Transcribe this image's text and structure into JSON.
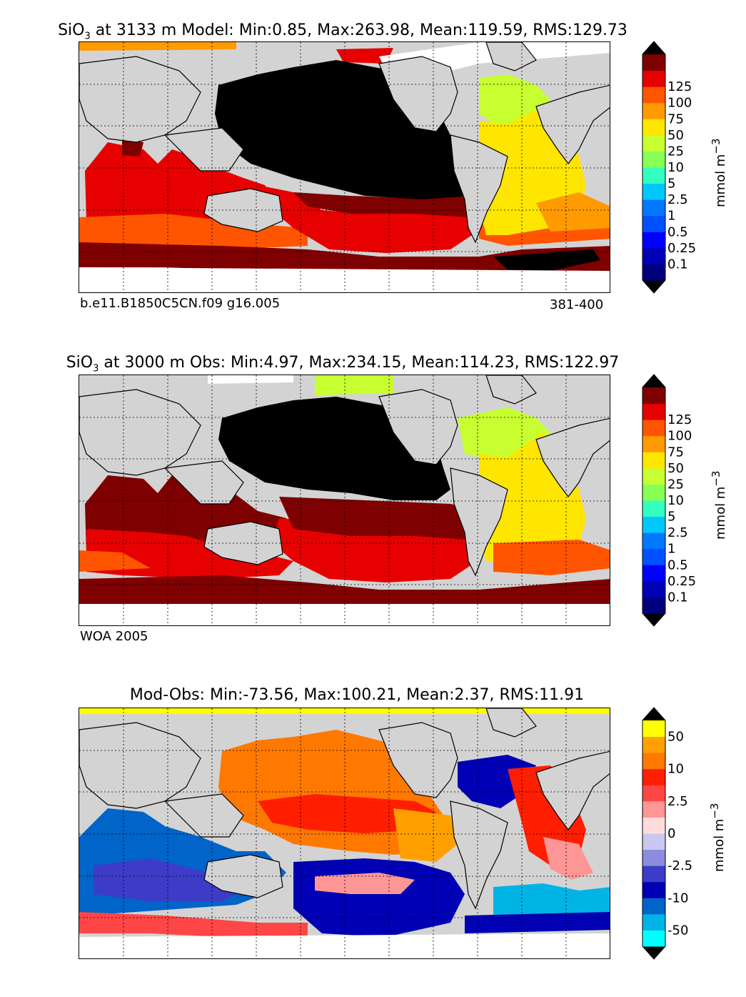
{
  "colors": {
    "land": "#d3d3d3",
    "nodata": "#ffffff",
    "pacific_deep": "#000000",
    "grid": "#000000"
  },
  "panels": [
    {
      "id": "model",
      "title_prefix": "SiO",
      "title_sub": "3",
      "title_suffix": " at 3133 m Model: Min:0.85, Max:263.98, Mean:119.59, RMS:129.73",
      "note_left": "b.e11.B1850C5CN.f09 g16.005",
      "note_right": "381-400",
      "colorbar": {
        "unit": "mmol m",
        "unit_sup": "−3",
        "levels": [
          "0.1",
          "0.25",
          "0.5",
          "1",
          "2.5",
          "5",
          "10",
          "25",
          "50",
          "75",
          "100",
          "125"
        ],
        "colors": [
          "#00007f",
          "#0000b4",
          "#0000ff",
          "#0050ff",
          "#0078ff",
          "#00c8ff",
          "#33ffc0",
          "#88ff55",
          "#c8ff30",
          "#ffe600",
          "#ff9a00",
          "#ff5500",
          "#e60000",
          "#7f0000"
        ],
        "top_arrow": "#000000",
        "bottom_arrow": "#000000"
      }
    },
    {
      "id": "obs",
      "title_prefix": "SiO",
      "title_sub": "3",
      "title_suffix": " at 3000 m Obs: Min:4.97, Max:234.15, Mean:114.23, RMS:122.97",
      "note_left": "WOA 2005",
      "note_right": "",
      "colorbar": {
        "unit": "mmol m",
        "unit_sup": "−3",
        "levels": [
          "0.1",
          "0.25",
          "0.5",
          "1",
          "2.5",
          "5",
          "10",
          "25",
          "50",
          "75",
          "100",
          "125"
        ],
        "colors": [
          "#00007f",
          "#0000b4",
          "#0000ff",
          "#0050ff",
          "#0078ff",
          "#00c8ff",
          "#33ffc0",
          "#88ff55",
          "#c8ff30",
          "#ffe600",
          "#ff9a00",
          "#ff5500",
          "#e60000",
          "#7f0000"
        ],
        "top_arrow": "#000000",
        "bottom_arrow": "#000000"
      }
    },
    {
      "id": "diff",
      "title_prefix": "",
      "title_sub": "",
      "title_suffix": "Mod-Obs: Min:-73.56, Max:100.21, Mean:2.37, RMS:11.91",
      "note_left": "",
      "note_right": "",
      "colorbar": {
        "unit": "mmol m",
        "unit_sup": "−3",
        "levels": [
          "-50",
          "",
          "-10",
          "",
          "-2.5",
          "",
          "0",
          "",
          "2.5",
          "",
          "10",
          "",
          "50"
        ],
        "colors": [
          "#00ffff",
          "#00b4e6",
          "#0064c8",
          "#0000b4",
          "#3c3cc8",
          "#8c8cdc",
          "#c8c8f0",
          "#ffdcdc",
          "#ff9696",
          "#ff4646",
          "#ff1e00",
          "#ff7800",
          "#ffa000",
          "#ffff00"
        ],
        "top_arrow": "#000000",
        "bottom_arrow": "#000000"
      }
    }
  ],
  "chart_data": [
    {
      "type": "heatmap",
      "title": "SiO3 at 3133 m Model: Min:0.85, Max:263.98, Mean:119.59, RMS:129.73",
      "stats": {
        "min": 0.85,
        "max": 263.98,
        "mean": 119.59,
        "rms": 129.73
      },
      "depth_m": 3133,
      "colorbar_levels": [
        0.1,
        0.25,
        0.5,
        1,
        2.5,
        5,
        10,
        25,
        50,
        75,
        100,
        125
      ],
      "grid": true
    },
    {
      "type": "heatmap",
      "title": "SiO3 at 3000 m Obs: Min:4.97, Max:234.15, Mean:114.23, RMS:122.97",
      "stats": {
        "min": 4.97,
        "max": 234.15,
        "mean": 114.23,
        "rms": 122.97
      },
      "depth_m": 3000,
      "colorbar_levels": [
        0.1,
        0.25,
        0.5,
        1,
        2.5,
        5,
        10,
        25,
        50,
        75,
        100,
        125
      ],
      "grid": true
    },
    {
      "type": "heatmap",
      "title": "Mod-Obs: Min:-73.56, Max:100.21, Mean:2.37, RMS:11.91",
      "stats": {
        "min": -73.56,
        "max": 100.21,
        "mean": 2.37,
        "rms": 11.91
      },
      "colorbar_levels": [
        -50,
        -10,
        -2.5,
        0,
        2.5,
        10,
        50
      ],
      "grid": true
    }
  ]
}
